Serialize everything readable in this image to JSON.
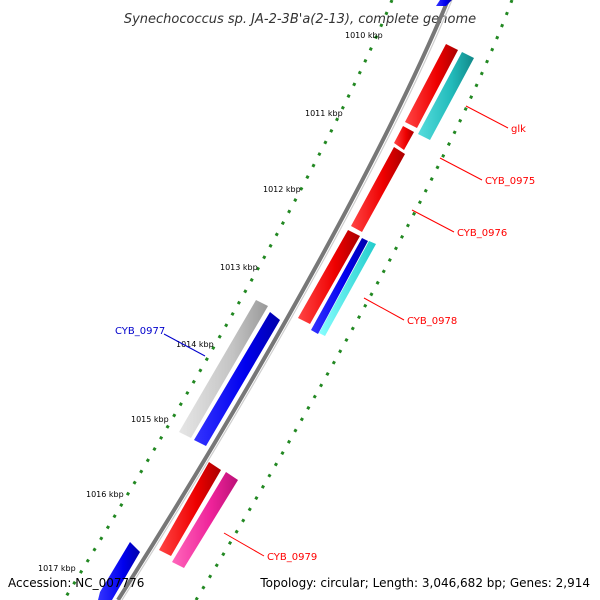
{
  "title": "Synechococcus sp. JA-2-3B'a(2-13), complete genome",
  "ticks": [
    "1010 kbp",
    "1011 kbp",
    "1012 kbp",
    "1013 kbp",
    "1014 kbp",
    "1015 kbp",
    "1016 kbp",
    "1017 kbp"
  ],
  "genes": [
    {
      "label": "glk",
      "color": "#ff0000"
    },
    {
      "label": "CYB_0975",
      "color": "#ff0000"
    },
    {
      "label": "CYB_0976",
      "color": "#ff0000"
    },
    {
      "label": "CYB_0977",
      "color": "#0000cc"
    },
    {
      "label": "CYB_0978",
      "color": "#ff0000"
    },
    {
      "label": "CYB_0979",
      "color": "#ff0000"
    }
  ],
  "feature_colors": {
    "forward_cds": "#ff0000",
    "reverse_cds": "#0000ff",
    "rna": "#ff33aa",
    "other": "#bbbbbb",
    "orf": "#22bbbb",
    "backbone": "#777777",
    "ticks": "#228822"
  },
  "footer": {
    "accession": "Accession: NC_007776",
    "summary": "Topology: circular; Length: 3,046,682 bp; Genes: 2,914"
  }
}
